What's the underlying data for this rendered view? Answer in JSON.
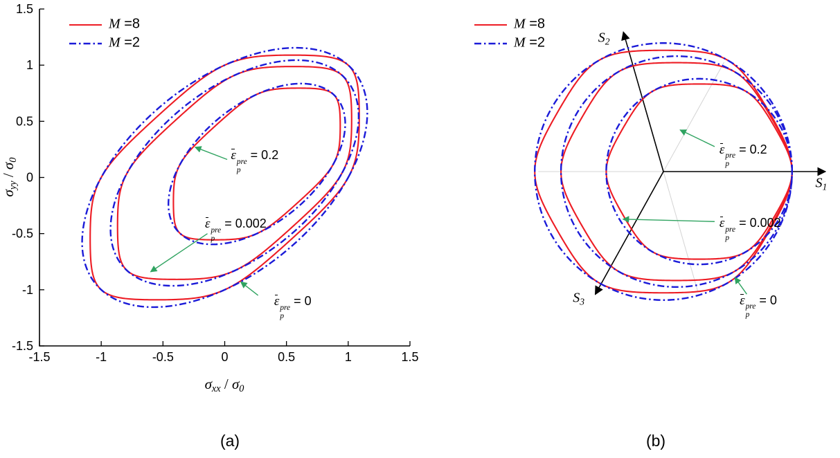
{
  "figure": {
    "captions": {
      "a": "(a)",
      "b": "(b)"
    },
    "background": "#ffffff"
  },
  "style": {
    "red": "#ed1c24",
    "blue": "#1b1bd8",
    "green": "#2fa360",
    "axis_color": "#000000",
    "faint_line_color": "#d4d4d4"
  },
  "legend_entries": [
    {
      "series": "M=8",
      "parts": [
        {
          "t": "M",
          "i": 1
        },
        {
          "t": " =8",
          "sans": 1
        }
      ]
    },
    {
      "series": "M=2",
      "parts": [
        {
          "t": "M",
          "i": 1
        },
        {
          "t": " =2",
          "sans": 1
        }
      ]
    }
  ],
  "chart_data": [
    {
      "id": "a",
      "type": "line",
      "model": "hosford_plane_stress",
      "title": "",
      "xlabel_parts": [
        {
          "t": "σ",
          "i": 1
        },
        {
          "t": "xx",
          "sub": 1
        },
        {
          "t": " / "
        },
        {
          "t": "σ",
          "i": 1
        },
        {
          "t": "0",
          "sub": 1
        }
      ],
      "ylabel_parts": [
        {
          "t": "σ",
          "i": 1
        },
        {
          "t": "yy",
          "sub": 1
        },
        {
          "t": " / "
        },
        {
          "t": "σ",
          "i": 1
        },
        {
          "t": "0",
          "sub": 1
        }
      ],
      "xlim": [
        -1.5,
        1.5
      ],
      "ylim": [
        -1.5,
        1.5
      ],
      "xticks": [
        -1.5,
        -1,
        -0.5,
        0,
        0.5,
        1,
        1.5
      ],
      "yticks": [
        -1.5,
        -1,
        -0.5,
        0,
        0.5,
        1,
        1.5
      ],
      "grid": false,
      "legend_position": "top-left",
      "series": [
        {
          "name": "M=8",
          "exponent": 8,
          "color_key": "red",
          "line": "solid"
        },
        {
          "name": "M=2",
          "exponent": 2,
          "color_key": "blue",
          "line": "dashdot"
        }
      ],
      "surfaces": [
        {
          "pre_strain": "0",
          "center": [
            0,
            0
          ],
          "size": 1.0
        },
        {
          "pre_strain": "0.002",
          "center": [
            0.08,
            0.04
          ],
          "size": 0.87
        },
        {
          "pre_strain": "0.2",
          "center": [
            0.26,
            0.12
          ],
          "size": 0.62
        }
      ],
      "annotations": [
        {
          "label_parts": [
            {
              "t": "ε",
              "i": 1,
              "bar": 1
            },
            {
              "stack": [
                "pre",
                "p"
              ]
            },
            {
              "t": " = 0.2",
              "sans": 1
            }
          ],
          "target_pre_strain": "0.2",
          "label_xy": [
            0.05,
            0.18
          ],
          "arrow_from": [
            0.02,
            0.16
          ],
          "arrow_to": [
            -0.24,
            0.27
          ]
        },
        {
          "label_parts": [
            {
              "t": "ε",
              "i": 1,
              "bar": 1
            },
            {
              "stack": [
                "pre",
                "p"
              ]
            },
            {
              "t": " = 0.002",
              "sans": 1
            }
          ],
          "target_pre_strain": "0.002",
          "label_xy": [
            -0.16,
            -0.43
          ],
          "arrow_from": [
            -0.14,
            -0.5
          ],
          "arrow_to": [
            -0.6,
            -0.84
          ]
        },
        {
          "label_parts": [
            {
              "t": "ε",
              "i": 1,
              "bar": 1
            },
            {
              "stack": [
                "pre",
                "p"
              ]
            },
            {
              "t": " = 0",
              "sans": 1
            }
          ],
          "target_pre_strain": "0",
          "label_xy": [
            0.4,
            -1.12
          ],
          "arrow_from": [
            0.27,
            -1.05
          ],
          "arrow_to": [
            0.13,
            -0.93
          ]
        }
      ]
    },
    {
      "id": "b",
      "type": "line",
      "model": "hosford_pi_plane",
      "title": "",
      "grid": false,
      "axes": [
        {
          "label_parts": [
            {
              "t": "S",
              "i": 1
            },
            {
              "t": "1",
              "sub": 1
            }
          ],
          "angle_deg": 0,
          "length": 1.36,
          "label_offset": [
            -6,
            18
          ]
        },
        {
          "label_parts": [
            {
              "t": "S",
              "i": 1
            },
            {
              "t": "2",
              "sub": 1
            }
          ],
          "angle_deg": 106,
          "length": 1.22,
          "label_offset": [
            -28,
            10
          ]
        },
        {
          "label_parts": [
            {
              "t": "S",
              "i": 1
            },
            {
              "t": "3",
              "sub": 1
            }
          ],
          "angle_deg": 241,
          "length": 1.18,
          "label_offset": [
            -24,
            6
          ]
        }
      ],
      "faint_axes": [
        {
          "angle_deg": 180,
          "length": 1.05
        },
        {
          "angle_deg": 286,
          "length": 1.05
        },
        {
          "angle_deg": 61,
          "length": 1.05
        }
      ],
      "series": [
        {
          "name": "M=8",
          "exponent": 8,
          "color_key": "red",
          "line": "solid"
        },
        {
          "name": "M=2",
          "exponent": 2,
          "color_key": "blue",
          "line": "dashdot"
        }
      ],
      "surfaces": [
        {
          "pre_strain": "0",
          "center": [
            0,
            0
          ],
          "size": 1.08
        },
        {
          "pre_strain": "0.002",
          "center": [
            0.11,
            0
          ],
          "size": 0.97
        },
        {
          "pre_strain": "0.2",
          "center": [
            0.3,
            0
          ],
          "size": 0.78
        }
      ],
      "annotations": [
        {
          "label_parts": [
            {
              "t": "ε",
              "i": 1,
              "bar": 1
            },
            {
              "stack": [
                "pre",
                "p"
              ]
            },
            {
              "t": " = 0.2",
              "sans": 1
            }
          ],
          "target_pre_strain": "0.2",
          "label_xy": [
            0.47,
            0.17
          ],
          "arrow_from": [
            0.43,
            0.21
          ],
          "arrow_to": [
            0.14,
            0.35
          ]
        },
        {
          "label_parts": [
            {
              "t": "ε",
              "i": 1,
              "bar": 1
            },
            {
              "stack": [
                "pre",
                "p"
              ]
            },
            {
              "t": " = 0.002",
              "sans": 1
            }
          ],
          "target_pre_strain": "0.002",
          "label_xy": [
            0.47,
            -0.45
          ],
          "arrow_from": [
            0.43,
            -0.42
          ],
          "arrow_to": [
            -0.34,
            -0.4
          ]
        },
        {
          "label_parts": [
            {
              "t": "ε",
              "i": 1,
              "bar": 1
            },
            {
              "stack": [
                "pre",
                "p"
              ]
            },
            {
              "t": " = 0",
              "sans": 1
            }
          ],
          "target_pre_strain": "0",
          "label_xy": [
            0.64,
            -1.1
          ],
          "arrow_from": [
            0.7,
            -1.03
          ],
          "arrow_to": [
            0.6,
            -0.89
          ]
        }
      ]
    }
  ]
}
